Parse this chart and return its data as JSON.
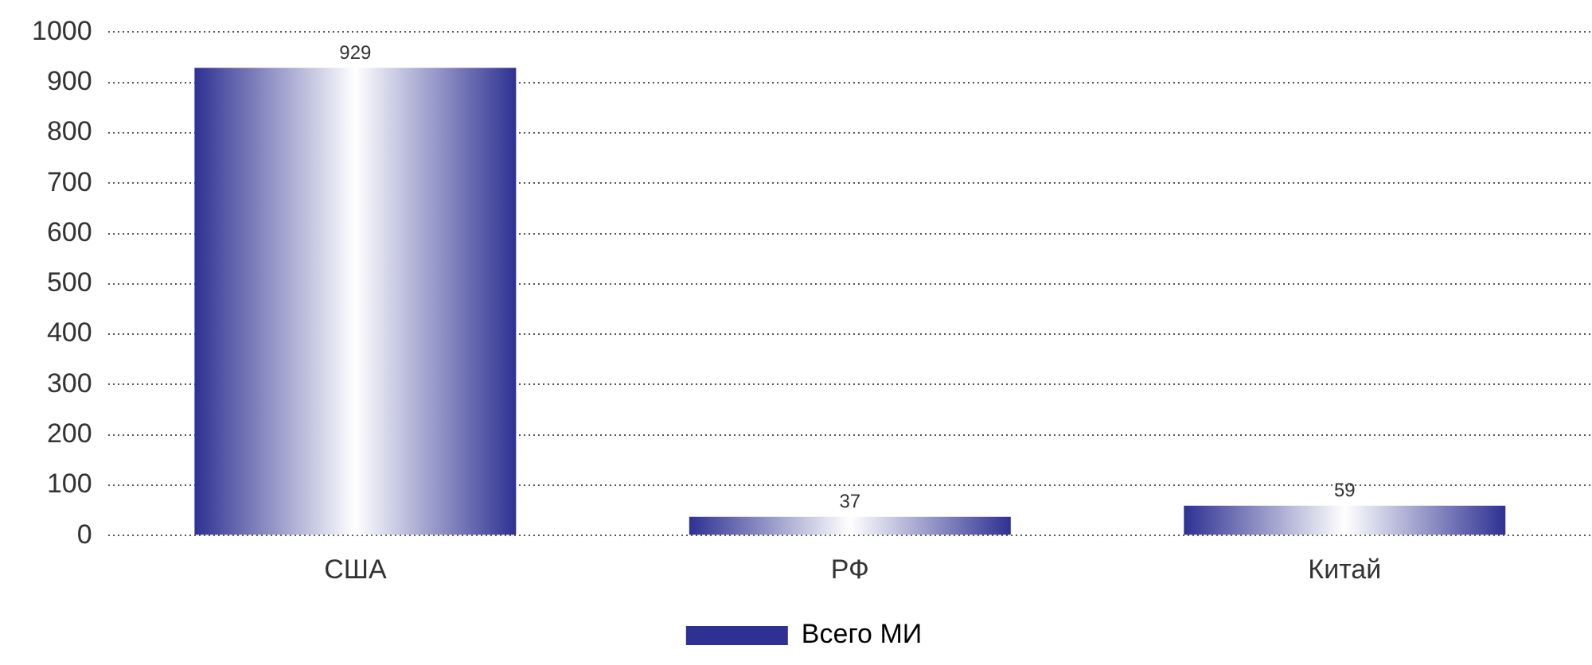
{
  "chart_data": {
    "type": "bar",
    "categories": [
      "США",
      "РФ",
      "Китай"
    ],
    "series": [
      {
        "name": "Всего МИ",
        "color": "#2e3192",
        "values": [
          929,
          37,
          59
        ]
      }
    ],
    "ylim": [
      0,
      1000
    ],
    "yticks": [
      0,
      100,
      200,
      300,
      400,
      500,
      600,
      700,
      800,
      900,
      1000
    ],
    "grid": "y",
    "legend": "bottom",
    "data_labels": true
  }
}
